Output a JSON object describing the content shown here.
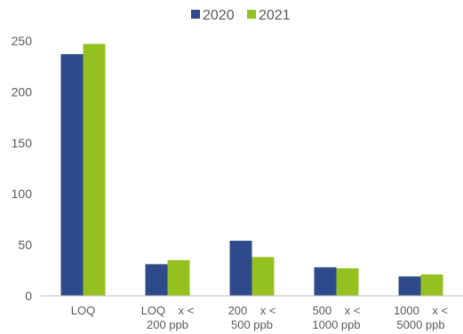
{
  "chart_data": {
    "type": "bar",
    "categories": [
      {
        "line1": "LOQ",
        "line2": ""
      },
      {
        "line1": "LOQ    x <",
        "line2": "200 ppb"
      },
      {
        "line1": "200    x <",
        "line2": "500 ppb"
      },
      {
        "line1": "500    x <",
        "line2": "1000 ppb"
      },
      {
        "line1": "1000    x <",
        "line2": "5000 ppb"
      }
    ],
    "series": [
      {
        "name": "2020",
        "color": "#2e4a8b",
        "values": [
          237,
          31,
          54,
          28,
          19
        ]
      },
      {
        "name": "2021",
        "color": "#94c11f",
        "values": [
          247,
          35,
          38,
          27,
          21
        ]
      }
    ],
    "yticks": [
      "0",
      "50",
      "100",
      "150",
      "200",
      "250"
    ],
    "ylim": [
      0,
      250
    ],
    "grid": false,
    "legend_position": "top-center",
    "title": "",
    "xlabel": "",
    "ylabel": ""
  }
}
